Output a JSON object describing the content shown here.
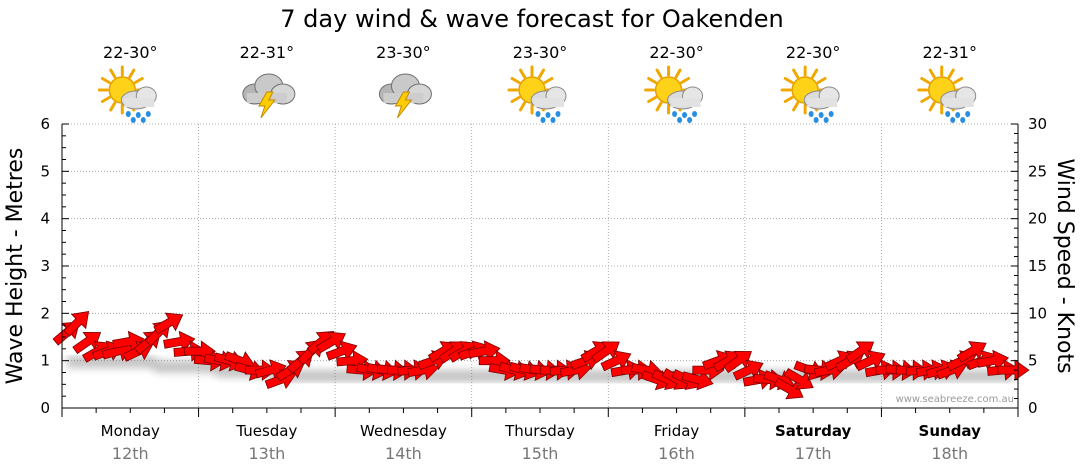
{
  "chart_data": {
    "type": "line",
    "title": "7 day wind & wave forecast for Oakenden",
    "y_left_label": "Wave Height - Metres",
    "y_right_label": "Wind Speed - Knots",
    "y_left_range": [
      0,
      6
    ],
    "y_right_range": [
      0,
      30
    ],
    "y_left_ticks": [
      "0",
      "1",
      "2",
      "3",
      "4",
      "5",
      "6"
    ],
    "y_right_ticks": [
      "0",
      "5",
      "10",
      "15",
      "20",
      "25",
      "30"
    ],
    "grid": true,
    "days": [
      {
        "name": "Monday",
        "date": "12th",
        "temp": "22-30°",
        "weather_icon": "sun-cloud-rain-icon",
        "bold": false
      },
      {
        "name": "Tuesday",
        "date": "13th",
        "temp": "22-31°",
        "weather_icon": "cloud-lightning-icon",
        "bold": false
      },
      {
        "name": "Wednesday",
        "date": "14th",
        "temp": "23-30°",
        "weather_icon": "cloud-lightning-icon",
        "bold": false
      },
      {
        "name": "Thursday",
        "date": "15th",
        "temp": "23-30°",
        "weather_icon": "sun-cloud-rain-icon",
        "bold": false
      },
      {
        "name": "Friday",
        "date": "16th",
        "temp": "22-30°",
        "weather_icon": "sun-cloud-rain-icon",
        "bold": false
      },
      {
        "name": "Saturday",
        "date": "17th",
        "temp": "22-30°",
        "weather_icon": "sun-cloud-rain-icon",
        "bold": true
      },
      {
        "name": "Sunday",
        "date": "18th",
        "temp": "22-31°",
        "weather_icon": "sun-cloud-rain-icon",
        "bold": true
      }
    ],
    "series": [
      {
        "name": "Wind Speed",
        "axis": "right",
        "units": "knots",
        "color": "#ff0000",
        "marker": "wind-arrow",
        "values": [
          8,
          9,
          7,
          6,
          6,
          6,
          7,
          6,
          7,
          8,
          9,
          7,
          6,
          6,
          5,
          5,
          5,
          5,
          4,
          4,
          4,
          3,
          4,
          5,
          6,
          7,
          7,
          6,
          5,
          4,
          4,
          4,
          4,
          4,
          4,
          4,
          5,
          6,
          6,
          6,
          6,
          6,
          5,
          4,
          4,
          4,
          4,
          4,
          4,
          4,
          4,
          5,
          6,
          6,
          5,
          4,
          4,
          4,
          3,
          3,
          3,
          3,
          3,
          4,
          5,
          5,
          5,
          4,
          3,
          3,
          3,
          2,
          3,
          4,
          4,
          4,
          5,
          5,
          6,
          5,
          4,
          4,
          4,
          4,
          4,
          4,
          4,
          4,
          5,
          6,
          5,
          5,
          4,
          4
        ]
      }
    ],
    "wave_height_m": [
      1.1,
      1.1,
      1.1,
      1.1,
      1.1,
      1.1,
      1.1,
      1.1,
      1.1,
      1.0,
      1.0,
      1.0,
      1.0,
      1.0,
      1.0,
      0.9,
      0.9,
      0.9,
      0.9,
      0.9,
      0.9,
      0.8,
      0.8,
      0.8,
      0.8,
      0.8,
      0.8,
      0.8,
      0.8,
      0.8,
      0.8,
      0.8,
      0.8,
      0.8,
      0.8,
      0.8,
      0.8,
      0.8,
      0.8,
      0.8,
      0.8,
      0.8,
      0.8,
      0.8,
      0.8,
      0.8,
      0.8,
      0.8,
      0.8,
      0.8,
      0.8,
      0.8,
      0.8,
      0.8,
      0.8,
      0.8,
      0.8,
      0.8,
      0.8,
      0.8,
      0.8,
      0.8,
      0.8,
      0.8,
      0.8,
      0.8,
      0.8,
      0.8,
      0.8,
      0.8,
      0.8,
      0.8,
      0.8,
      0.8,
      0.8,
      0.8,
      0.8,
      0.8,
      0.8,
      0.8,
      0.8,
      0.8,
      0.8,
      0.8,
      0.8,
      0.8,
      0.8,
      0.8,
      0.8,
      0.8,
      0.8,
      0.8,
      0.8
    ],
    "wind_direction_deg": [
      230,
      225,
      235,
      240,
      250,
      255,
      260,
      245,
      230,
      225,
      240,
      260,
      265,
      270,
      275,
      280,
      285,
      290,
      285,
      270,
      255,
      250,
      240,
      230,
      225,
      230,
      240,
      250,
      265,
      275,
      280,
      280,
      275,
      270,
      265,
      260,
      250,
      240,
      235,
      240,
      250,
      260,
      270,
      280,
      285,
      285,
      280,
      275,
      270,
      265,
      260,
      250,
      240,
      235,
      245,
      260,
      270,
      280,
      290,
      295,
      300,
      295,
      285,
      270,
      250,
      240,
      235,
      245,
      260,
      275,
      290,
      300,
      300,
      290,
      275,
      260,
      245,
      240,
      235,
      245,
      260,
      270,
      275,
      270,
      265,
      260,
      255,
      250,
      245,
      240,
      250,
      260,
      265,
      270
    ],
    "watermark": "www.seabreeze.com.au"
  }
}
